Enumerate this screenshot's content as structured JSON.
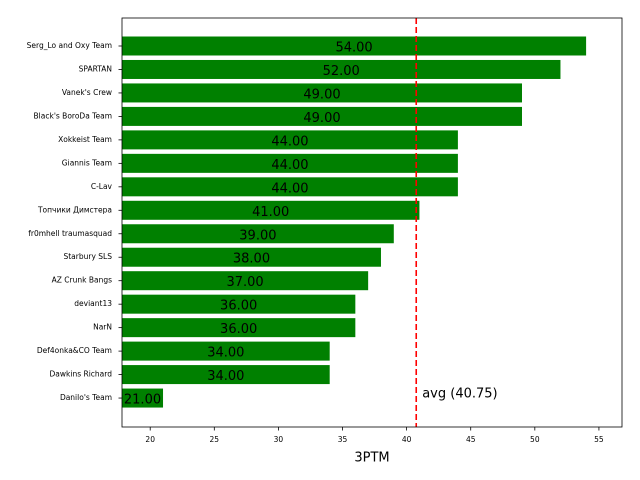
{
  "chart_data": {
    "type": "barh",
    "categories": [
      "Serg_Lo and Oxy Team",
      "SPARTAN",
      "Vanek's Crew",
      "Black's BoroDa Team",
      "Xokkeist Team",
      "Giannis Team",
      "C-Lav",
      "Топчики Димстера",
      "fr0mhell traumasquad",
      "Starbury SLS",
      "AZ Crunk Bangs",
      "deviant13",
      "NarN",
      "Def4onka&CO Team",
      "Dawkins Richard",
      "Danilo's Team"
    ],
    "values": [
      54,
      52,
      49,
      49,
      44,
      44,
      44,
      41,
      39,
      38,
      37,
      36,
      36,
      34,
      34,
      21
    ],
    "value_labels": [
      "54.00",
      "52.00",
      "49.00",
      "49.00",
      "44.00",
      "44.00",
      "44.00",
      "41.00",
      "39.00",
      "38.00",
      "37.00",
      "36.00",
      "36.00",
      "34.00",
      "34.00",
      "21.00"
    ],
    "color": "#008000",
    "xlabel": "3PTM",
    "xlim": [
      17.8,
      56.8
    ],
    "xticks": [
      20,
      25,
      30,
      35,
      40,
      45,
      50,
      55
    ],
    "avg_line": {
      "value": 40.75,
      "label": "avg (40.75)",
      "color": "#ff0000"
    }
  }
}
